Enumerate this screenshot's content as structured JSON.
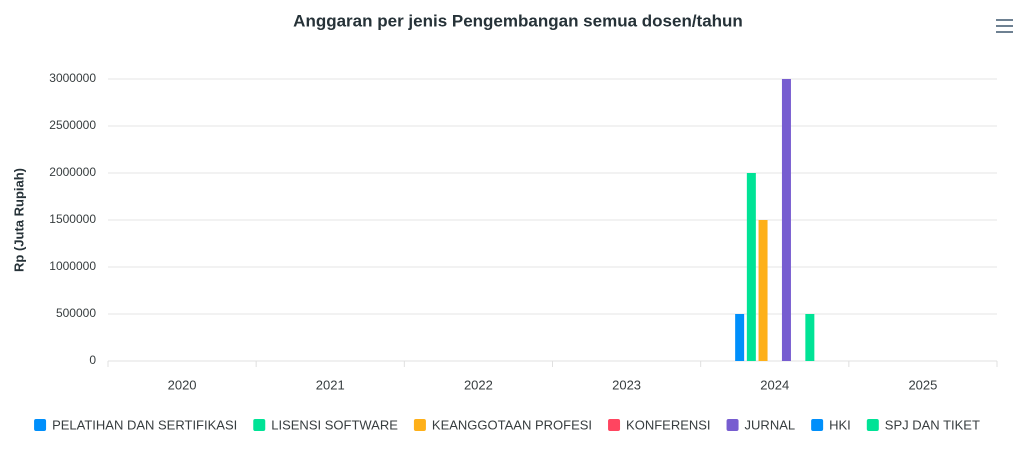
{
  "chart_data": {
    "type": "bar",
    "title": "Anggaran per jenis Pengembangan semua dosen/tahun",
    "y_label": "Rp (Juta Rupiah)",
    "categories": [
      "2020",
      "2021",
      "2022",
      "2023",
      "2024",
      "2025"
    ],
    "series": [
      {
        "name": "PELATIHAN DAN SERTIFIKASI",
        "color": "#008FFB",
        "values": [
          0,
          0,
          0,
          0,
          500000,
          0
        ]
      },
      {
        "name": "LISENSI SOFTWARE",
        "color": "#00E396",
        "values": [
          0,
          0,
          0,
          0,
          2000000,
          0
        ]
      },
      {
        "name": "KEANGGOTAAN PROFESI",
        "color": "#FEB019",
        "values": [
          0,
          0,
          0,
          0,
          1500000,
          0
        ]
      },
      {
        "name": "KONFERENSI",
        "color": "#FF4560",
        "values": [
          0,
          0,
          0,
          0,
          0,
          0
        ]
      },
      {
        "name": "JURNAL",
        "color": "#775DD0",
        "values": [
          0,
          0,
          0,
          0,
          3000000,
          0
        ]
      },
      {
        "name": "HKI",
        "color": "#008FFB",
        "values": [
          0,
          0,
          0,
          0,
          0,
          0
        ]
      },
      {
        "name": "SPJ DAN TIKET",
        "color": "#00E396",
        "values": [
          0,
          0,
          0,
          0,
          500000,
          0
        ]
      }
    ],
    "ylim": [
      0,
      3000000
    ],
    "yticks": [
      0,
      500000,
      1000000,
      1500000,
      2000000,
      2500000,
      3000000
    ],
    "grid": true
  }
}
